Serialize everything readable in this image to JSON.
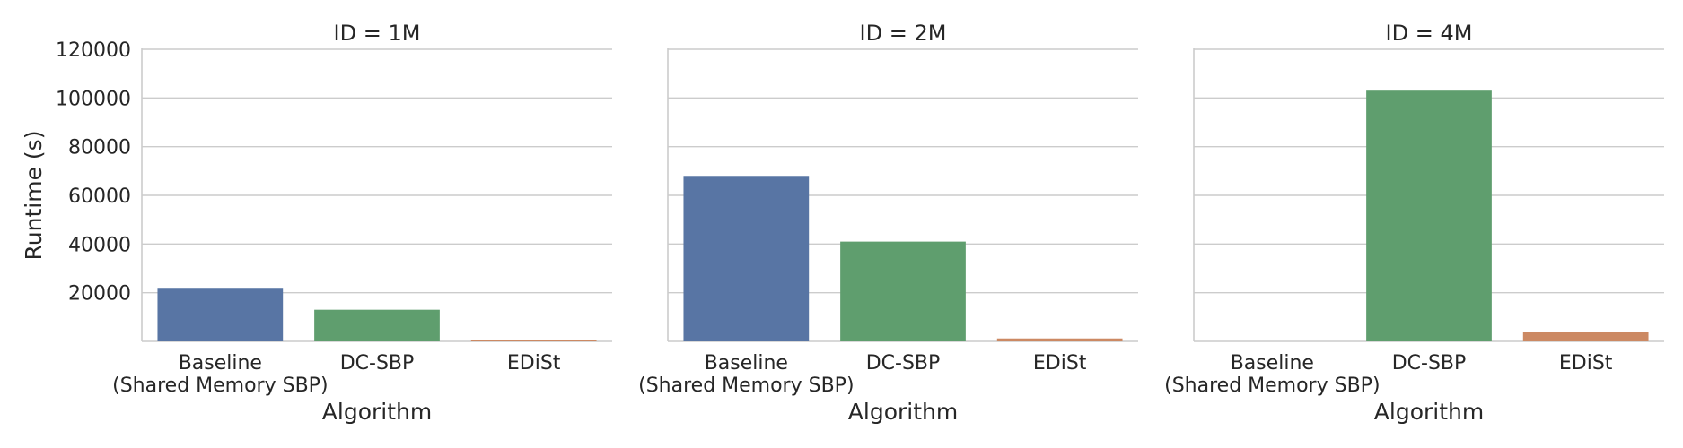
{
  "chart_data": {
    "type": "bar",
    "ylabel": "Runtime (s)",
    "ylim": [
      0,
      120000
    ],
    "yticks": [
      "20000",
      "40000",
      "60000",
      "80000",
      "100000",
      "120000"
    ],
    "grid": "horizontal",
    "colors": {
      "Baseline": "#5875a4",
      "DC-SBP": "#5f9e6e",
      "EDiSt": "#cc8963",
      "grid": "#cccccc",
      "axis": "#cccccc"
    },
    "panels": [
      {
        "title": "ID = 1M",
        "xlabel": "Algorithm",
        "categories": [
          "Baseline\n(Shared Memory SBP)",
          "DC-SBP",
          "EDiSt"
        ],
        "values": [
          22000,
          13000,
          500
        ]
      },
      {
        "title": "ID = 2M",
        "xlabel": "Algorithm",
        "categories": [
          "Baseline\n(Shared Memory SBP)",
          "DC-SBP",
          "EDiSt"
        ],
        "values": [
          68000,
          41000,
          1200
        ]
      },
      {
        "title": "ID = 4M",
        "xlabel": "Algorithm",
        "categories": [
          "Baseline\n(Shared Memory SBP)",
          "DC-SBP",
          "EDiSt"
        ],
        "values": [
          null,
          103000,
          3800
        ]
      }
    ]
  }
}
